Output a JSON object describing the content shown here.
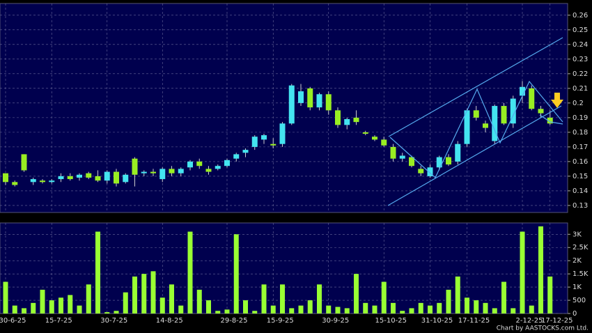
{
  "chart_data": [
    {
      "type": "candlestick",
      "open": [
        0.152,
        0.146,
        0.165,
        0.146,
        0.147,
        0.146,
        0.148,
        0.15,
        0.149,
        0.152,
        0.15,
        0.147,
        0.153,
        0.146,
        0.162,
        0.152,
        0.153,
        0.148,
        0.155,
        0.152,
        0.156,
        0.16,
        0.155,
        0.155,
        0.157,
        0.162,
        0.166,
        0.17,
        0.175,
        0.172,
        0.172,
        0.186,
        0.2,
        0.21,
        0.197,
        0.206,
        0.195,
        0.185,
        0.19,
        0.18,
        0.177,
        0.175,
        0.17,
        0.162,
        0.163,
        0.155,
        0.15,
        0.156,
        0.163,
        0.16,
        0.172,
        0.195,
        0.186,
        0.174,
        0.198,
        0.186,
        0.205,
        0.21,
        0.196,
        0.19
      ],
      "high": [
        0.152,
        0.147,
        0.165,
        0.149,
        0.148,
        0.148,
        0.152,
        0.152,
        0.152,
        0.153,
        0.154,
        0.154,
        0.155,
        0.152,
        0.163,
        0.154,
        0.155,
        0.156,
        0.157,
        0.156,
        0.161,
        0.162,
        0.157,
        0.158,
        0.162,
        0.166,
        0.169,
        0.178,
        0.179,
        0.176,
        0.187,
        0.213,
        0.213,
        0.211,
        0.207,
        0.208,
        0.197,
        0.19,
        0.195,
        0.181,
        0.178,
        0.177,
        0.172,
        0.166,
        0.164,
        0.157,
        0.158,
        0.164,
        0.165,
        0.174,
        0.196,
        0.198,
        0.188,
        0.199,
        0.2,
        0.205,
        0.215,
        0.212,
        0.198,
        0.195
      ],
      "low": [
        0.144,
        0.143,
        0.153,
        0.144,
        0.145,
        0.145,
        0.146,
        0.147,
        0.147,
        0.148,
        0.146,
        0.145,
        0.143,
        0.145,
        0.143,
        0.15,
        0.15,
        0.146,
        0.15,
        0.15,
        0.154,
        0.155,
        0.151,
        0.154,
        0.156,
        0.16,
        0.163,
        0.168,
        0.172,
        0.169,
        0.17,
        0.185,
        0.198,
        0.195,
        0.195,
        0.192,
        0.183,
        0.182,
        0.185,
        0.178,
        0.174,
        0.17,
        0.16,
        0.16,
        0.156,
        0.15,
        0.149,
        0.154,
        0.157,
        0.158,
        0.17,
        0.188,
        0.18,
        0.172,
        0.185,
        0.183,
        0.2,
        0.195,
        0.19,
        0.185
      ],
      "close": [
        0.146,
        0.144,
        0.154,
        0.148,
        0.146,
        0.147,
        0.15,
        0.148,
        0.151,
        0.149,
        0.147,
        0.153,
        0.145,
        0.151,
        0.151,
        0.153,
        0.152,
        0.155,
        0.152,
        0.155,
        0.16,
        0.157,
        0.153,
        0.157,
        0.161,
        0.165,
        0.168,
        0.177,
        0.178,
        0.171,
        0.186,
        0.212,
        0.208,
        0.197,
        0.206,
        0.195,
        0.185,
        0.189,
        0.187,
        0.179,
        0.175,
        0.171,
        0.162,
        0.164,
        0.157,
        0.152,
        0.156,
        0.163,
        0.158,
        0.172,
        0.195,
        0.19,
        0.183,
        0.198,
        0.186,
        0.203,
        0.211,
        0.196,
        0.193,
        0.186
      ],
      "up_color": "#44e4f0",
      "down_color": "#99ee22",
      "ylim": [
        0.1252,
        0.268
      ],
      "yticks": [
        0.13,
        0.14,
        0.15,
        0.16,
        0.17,
        0.18,
        0.19,
        0.2,
        0.21,
        0.22,
        0.23,
        0.24,
        0.25,
        0.26
      ],
      "grid": true
    },
    {
      "type": "bar",
      "categories": [
        "30-6-25",
        null,
        null,
        null,
        null,
        "15-7-25",
        null,
        null,
        null,
        null,
        null,
        "30-7-25",
        null,
        null,
        null,
        null,
        null,
        "14-8-25",
        null,
        null,
        null,
        null,
        null,
        null,
        "29-8-25",
        null,
        null,
        null,
        null,
        "15-9-25",
        null,
        null,
        null,
        null,
        null,
        "30-9-25",
        null,
        null,
        null,
        null,
        null,
        "15-10-25",
        null,
        null,
        null,
        null,
        "31-10-25",
        null,
        null,
        null,
        "17-11-25",
        null,
        null,
        null,
        null,
        null,
        "2-12-25",
        null,
        null,
        "17-12-25"
      ],
      "values": [
        1200,
        300,
        200,
        400,
        900,
        500,
        600,
        700,
        300,
        1100,
        3100,
        50,
        100,
        800,
        1400,
        1500,
        1600,
        600,
        1100,
        300,
        3100,
        900,
        500,
        100,
        150,
        3000,
        500,
        100,
        1100,
        300,
        1100,
        200,
        300,
        500,
        1100,
        300,
        250,
        200,
        1500,
        400,
        300,
        1200,
        400,
        100,
        200,
        400,
        300,
        400,
        900,
        1400,
        600,
        500,
        400,
        200,
        1200,
        200,
        3100,
        300,
        3300,
        1400
      ],
      "color": "#99ff33",
      "ylim": [
        0,
        3430
      ],
      "yticks": [
        0,
        500,
        {
          "value": 1000,
          "label": "1K"
        },
        {
          "value": 1500,
          "label": "1.5K"
        },
        {
          "value": 2000,
          "label": "2K"
        },
        {
          "value": 2500,
          "label": "2.5K"
        },
        {
          "value": 3000,
          "label": "3K"
        }
      ],
      "grid": true,
      "credit": "Chart by AASTOCKS.com Ltd."
    }
  ]
}
